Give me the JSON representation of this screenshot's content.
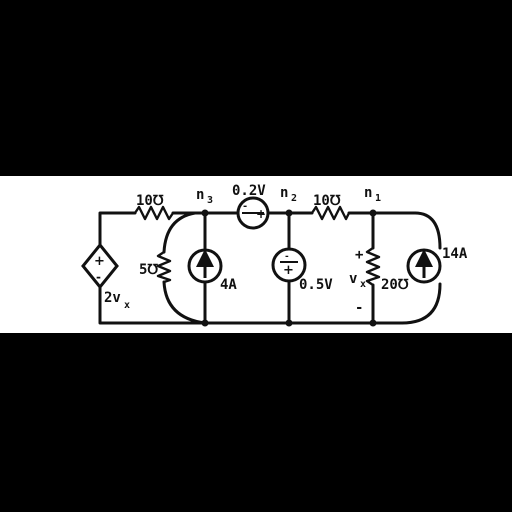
{
  "labels": {
    "r_left": "10℧",
    "n3": "n",
    "n3_sub": "3",
    "vsource_top": "0.2V",
    "n2": "n",
    "n2_sub": "2",
    "r_right": "10℧",
    "n1": "n",
    "n1_sub": "1",
    "g5": "5℧",
    "i4": "4A",
    "v05": "0.5V",
    "vx": "v",
    "vx_sub": "x",
    "r20": "20℧",
    "i14": "14A",
    "dep": "2v",
    "dep_sub": "x",
    "plus": "+",
    "minus": "-"
  }
}
